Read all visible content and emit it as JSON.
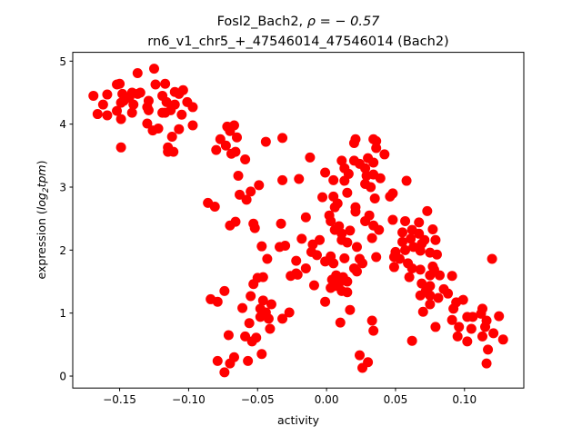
{
  "chart_data": {
    "type": "scatter",
    "title_line1": "Fosl2_Bach2, ",
    "title_rho": "ρ = − 0.57",
    "title_line2": "rn6_v1_chr5_+_47546014_47546014 (Bach2)",
    "xlabel": "activity",
    "ylabel": {
      "prefix": "expression (",
      "log": "log",
      "sub": "2",
      "unit": "tpm",
      "suffix": ")"
    },
    "xlim": [
      -0.184,
      0.143
    ],
    "ylim": [
      -0.19,
      5.14
    ],
    "xticks": [
      -0.15,
      -0.1,
      -0.05,
      0.0,
      0.05,
      0.1
    ],
    "xtick_labels": [
      "−0.15",
      "−0.10",
      "−0.05",
      "0.00",
      "0.05",
      "0.10"
    ],
    "yticks": [
      0,
      1,
      2,
      3,
      4,
      5
    ],
    "ytick_labels": [
      "0",
      "1",
      "2",
      "3",
      "4",
      "5"
    ],
    "grid": false,
    "marker_color": "#ff0000",
    "points": [
      [
        -0.169,
        4.45
      ],
      [
        -0.166,
        4.16
      ],
      [
        -0.162,
        4.31
      ],
      [
        -0.159,
        4.47
      ],
      [
        -0.159,
        4.14
      ],
      [
        -0.152,
        4.63
      ],
      [
        -0.15,
        4.64
      ],
      [
        -0.148,
        4.48
      ],
      [
        -0.152,
        4.21
      ],
      [
        -0.147,
        4.37
      ],
      [
        -0.149,
        4.08
      ],
      [
        -0.149,
        4.34
      ],
      [
        -0.143,
        4.42
      ],
      [
        -0.141,
        4.5
      ],
      [
        -0.14,
        4.31
      ],
      [
        -0.141,
        4.18
      ],
      [
        -0.137,
        4.48
      ],
      [
        -0.137,
        4.81
      ],
      [
        -0.135,
        4.5
      ],
      [
        -0.13,
        4.27
      ],
      [
        -0.129,
        4.37
      ],
      [
        -0.129,
        4.22
      ],
      [
        -0.125,
        4.88
      ],
      [
        -0.124,
        4.63
      ],
      [
        -0.119,
        4.45
      ],
      [
        -0.119,
        4.18
      ],
      [
        -0.117,
        4.64
      ],
      [
        -0.116,
        4.35
      ],
      [
        -0.117,
        4.18
      ],
      [
        -0.113,
        4.22
      ],
      [
        -0.11,
        4.51
      ],
      [
        -0.11,
        4.31
      ],
      [
        -0.107,
        4.48
      ],
      [
        -0.105,
        4.15
      ],
      [
        -0.104,
        4.54
      ],
      [
        -0.101,
        4.35
      ],
      [
        -0.097,
        4.27
      ],
      [
        -0.13,
        4.01
      ],
      [
        -0.149,
        3.63
      ],
      [
        -0.126,
        3.9
      ],
      [
        -0.122,
        3.93
      ],
      [
        -0.115,
        3.56
      ],
      [
        -0.111,
        3.56
      ],
      [
        -0.107,
        3.92
      ],
      [
        -0.112,
        3.8
      ],
      [
        -0.115,
        3.63
      ],
      [
        -0.097,
        3.98
      ],
      [
        -0.072,
        3.96
      ],
      [
        -0.067,
        3.98
      ],
      [
        -0.07,
        3.89
      ],
      [
        -0.065,
        3.79
      ],
      [
        -0.077,
        3.76
      ],
      [
        -0.073,
        3.66
      ],
      [
        -0.08,
        3.59
      ],
      [
        -0.069,
        3.53
      ],
      [
        -0.066,
        3.56
      ],
      [
        -0.059,
        3.44
      ],
      [
        -0.044,
        3.72
      ],
      [
        -0.032,
        3.78
      ],
      [
        -0.064,
        3.18
      ],
      [
        -0.049,
        3.03
      ],
      [
        -0.055,
        2.93
      ],
      [
        -0.063,
        2.88
      ],
      [
        -0.058,
        2.8
      ],
      [
        -0.032,
        3.11
      ],
      [
        -0.086,
        2.75
      ],
      [
        -0.081,
        2.69
      ],
      [
        -0.07,
        2.39
      ],
      [
        -0.066,
        2.45
      ],
      [
        -0.053,
        2.42
      ],
      [
        -0.052,
        2.35
      ],
      [
        -0.033,
        2.42
      ],
      [
        -0.047,
        2.06
      ],
      [
        -0.034,
        2.05
      ],
      [
        -0.03,
        2.07
      ],
      [
        -0.043,
        1.86
      ],
      [
        -0.022,
        1.83
      ],
      [
        -0.026,
        1.59
      ],
      [
        -0.022,
        1.63
      ],
      [
        -0.05,
        1.56
      ],
      [
        -0.046,
        1.57
      ],
      [
        -0.053,
        1.46
      ],
      [
        -0.074,
        1.35
      ],
      [
        -0.084,
        1.22
      ],
      [
        -0.079,
        1.18
      ],
      [
        -0.055,
        1.27
      ],
      [
        -0.046,
        1.2
      ],
      [
        -0.04,
        1.14
      ],
      [
        -0.061,
        1.08
      ],
      [
        -0.048,
        1.07
      ],
      [
        -0.044,
        1.01
      ],
      [
        -0.048,
        0.94
      ],
      [
        -0.042,
        0.91
      ],
      [
        -0.032,
        0.91
      ],
      [
        -0.027,
        1.01
      ],
      [
        -0.041,
        0.75
      ],
      [
        -0.056,
        0.84
      ],
      [
        -0.071,
        0.65
      ],
      [
        -0.059,
        0.63
      ],
      [
        -0.054,
        0.55
      ],
      [
        -0.051,
        0.61
      ],
      [
        -0.047,
        0.35
      ],
      [
        -0.079,
        0.24
      ],
      [
        -0.067,
        0.3
      ],
      [
        -0.07,
        0.2
      ],
      [
        -0.057,
        0.24
      ],
      [
        -0.074,
        0.06
      ],
      [
        0.021,
        3.76
      ],
      [
        0.02,
        3.7
      ],
      [
        0.034,
        3.76
      ],
      [
        0.036,
        3.73
      ],
      [
        0.036,
        3.62
      ],
      [
        0.042,
        3.52
      ],
      [
        -0.012,
        3.47
      ],
      [
        0.011,
        3.42
      ],
      [
        0.02,
        3.42
      ],
      [
        0.024,
        3.37
      ],
      [
        0.03,
        3.46
      ],
      [
        0.034,
        3.39
      ],
      [
        0.013,
        3.3
      ],
      [
        0.016,
        3.21
      ],
      [
        0.028,
        3.3
      ],
      [
        0.029,
        3.18
      ],
      [
        0.034,
        3.2
      ],
      [
        0.039,
        3.14
      ],
      [
        -0.001,
        3.23
      ],
      [
        -0.02,
        3.13
      ],
      [
        0.005,
        3.11
      ],
      [
        0.013,
        3.1
      ],
      [
        0.028,
        3.05
      ],
      [
        0.032,
        3.0
      ],
      [
        0.058,
        3.1
      ],
      [
        0.015,
        2.91
      ],
      [
        -0.003,
        2.84
      ],
      [
        0.005,
        2.85
      ],
      [
        0.035,
        2.82
      ],
      [
        0.046,
        2.85
      ],
      [
        0.048,
        2.9
      ],
      [
        0.008,
        2.74
      ],
      [
        0.006,
        2.68
      ],
      [
        0.021,
        2.68
      ],
      [
        0.021,
        2.61
      ],
      [
        -0.015,
        2.52
      ],
      [
        0.002,
        2.55
      ],
      [
        0.003,
        2.46
      ],
      [
        0.031,
        2.55
      ],
      [
        0.028,
        2.46
      ],
      [
        0.034,
        2.39
      ],
      [
        0.038,
        2.32
      ],
      [
        0.009,
        2.38
      ],
      [
        0.006,
        2.32
      ],
      [
        0.017,
        2.31
      ],
      [
        0.011,
        2.26
      ],
      [
        0.011,
        2.16
      ],
      [
        0.015,
        2.12
      ],
      [
        0.033,
        2.19
      ],
      [
        -0.018,
        2.18
      ],
      [
        -0.005,
        2.16
      ],
      [
        -0.01,
        2.09
      ],
      [
        -0.011,
        1.97
      ],
      [
        -0.007,
        1.92
      ],
      [
        0.022,
        2.05
      ],
      [
        0.073,
        2.62
      ],
      [
        0.048,
        2.48
      ],
      [
        0.057,
        2.46
      ],
      [
        0.067,
        2.44
      ],
      [
        0.077,
        2.33
      ],
      [
        0.055,
        2.28
      ],
      [
        0.062,
        2.32
      ],
      [
        0.067,
        2.26
      ],
      [
        0.055,
        2.13
      ],
      [
        0.061,
        2.18
      ],
      [
        0.071,
        2.16
      ],
      [
        0.079,
        2.16
      ],
      [
        0.063,
        2.05
      ],
      [
        0.069,
        2.1
      ],
      [
        0.05,
        1.97
      ],
      [
        0.057,
        2.0
      ],
      [
        0.068,
        1.99
      ],
      [
        0.075,
        1.96
      ],
      [
        0.08,
        1.93
      ],
      [
        -0.015,
        1.71
      ],
      [
        -0.021,
        1.61
      ],
      [
        -0.001,
        1.82
      ],
      [
        0.003,
        1.9
      ],
      [
        0.005,
        1.79
      ],
      [
        0.013,
        1.87
      ],
      [
        0.02,
        1.71
      ],
      [
        0.024,
        1.86
      ],
      [
        0.026,
        1.79
      ],
      [
        0.036,
        1.89
      ],
      [
        0.049,
        1.89
      ],
      [
        0.053,
        1.86
      ],
      [
        0.049,
        1.73
      ],
      [
        0.059,
        1.79
      ],
      [
        0.062,
        1.71
      ],
      [
        0.068,
        1.69
      ],
      [
        0.06,
        1.57
      ],
      [
        0.077,
        1.74
      ],
      [
        0.078,
        1.69
      ],
      [
        0.075,
        1.6
      ],
      [
        0.082,
        1.6
      ],
      [
        0.091,
        1.59
      ],
      [
        0.007,
        1.6
      ],
      [
        0.012,
        1.57
      ],
      [
        0.015,
        1.5
      ],
      [
        0.004,
        1.53
      ],
      [
        0.009,
        1.47
      ],
      [
        0.006,
        1.43
      ],
      [
        0.003,
        1.4
      ],
      [
        0.011,
        1.35
      ],
      [
        0.015,
        1.33
      ],
      [
        -0.009,
        1.44
      ],
      [
        0.022,
        1.66
      ],
      [
        0.069,
        1.47
      ],
      [
        0.075,
        1.43
      ],
      [
        0.072,
        1.35
      ],
      [
        0.068,
        1.28
      ],
      [
        0.075,
        1.28
      ],
      [
        0.085,
        1.38
      ],
      [
        0.088,
        1.31
      ],
      [
        0.081,
        1.24
      ],
      [
        0.075,
        1.14
      ],
      [
        0.07,
        1.02
      ],
      [
        0.094,
        1.17
      ],
      [
        0.099,
        1.21
      ],
      [
        0.092,
        1.07
      ],
      [
        0.091,
        0.89
      ],
      [
        0.102,
        0.94
      ],
      [
        0.106,
        0.94
      ],
      [
        0.113,
        1.07
      ],
      [
        0.112,
        0.99
      ],
      [
        0.116,
        0.88
      ],
      [
        0.125,
        0.95
      ],
      [
        0.096,
        0.78
      ],
      [
        0.105,
        0.75
      ],
      [
        0.115,
        0.78
      ],
      [
        0.095,
        0.63
      ],
      [
        0.102,
        0.55
      ],
      [
        0.113,
        0.63
      ],
      [
        0.121,
        0.68
      ],
      [
        0.128,
        0.58
      ],
      [
        0.117,
        0.42
      ],
      [
        0.116,
        0.2
      ],
      [
        0.12,
        1.86
      ],
      [
        0.079,
        0.78
      ],
      [
        0.062,
        0.56
      ],
      [
        -0.001,
        1.18
      ],
      [
        0.017,
        1.05
      ],
      [
        0.01,
        0.85
      ],
      [
        0.033,
        0.88
      ],
      [
        0.034,
        0.72
      ],
      [
        0.024,
        0.33
      ],
      [
        0.03,
        0.22
      ],
      [
        0.026,
        0.13
      ]
    ]
  }
}
